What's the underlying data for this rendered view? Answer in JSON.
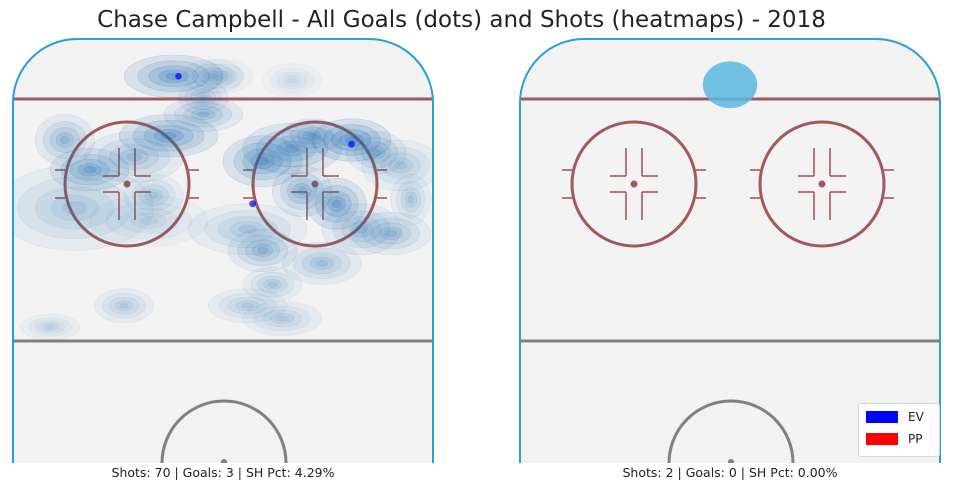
{
  "title": "Chase Campbell - All Goals (dots) and Shots (heatmaps) - 2018",
  "colors": {
    "rink_bg": "#f2f2f2",
    "boards": "#2a9fd6",
    "red_line": "#a05a5a",
    "grey_line": "#808080",
    "ev": "#0000ff",
    "pp": "#ff0000",
    "shot_heat": "#1f6fb8",
    "pp_shot_heat": "#5ab8e0"
  },
  "legend": {
    "placement": "lower-right",
    "items": [
      {
        "label": "EV",
        "color": "#0000ff"
      },
      {
        "label": "PP",
        "color": "#ff0000"
      }
    ]
  },
  "chart_data": [
    {
      "type": "heatmap",
      "panel": "left",
      "caption": "Shots: 70 | Goals: 3 | SH Pct: 4.29%",
      "stats": {
        "shots": 70,
        "goals": 3,
        "sh_pct": "4.29%"
      },
      "xlim": [
        -42.5,
        42.5
      ],
      "ylim": [
        0,
        100
      ],
      "goals": [
        {
          "x": -9,
          "y": 91,
          "strength": "EV"
        },
        {
          "x": 26,
          "y": 75,
          "strength": "EV"
        },
        {
          "x": 6,
          "y": 61,
          "strength": "EV"
        }
      ],
      "shot_density": [
        {
          "x": -10,
          "y": 91,
          "sx": 5,
          "sy": 2.5,
          "w": 1.0
        },
        {
          "x": -2,
          "y": 91,
          "sx": 3,
          "sy": 2,
          "w": 0.5
        },
        {
          "x": -4,
          "y": 86,
          "sx": 2.5,
          "sy": 2,
          "w": 0.55
        },
        {
          "x": -32,
          "y": 76,
          "sx": 3,
          "sy": 3,
          "w": 0.7
        },
        {
          "x": -27,
          "y": 69,
          "sx": 4,
          "sy": 2.5,
          "w": 0.9
        },
        {
          "x": -11,
          "y": 77,
          "sx": 5,
          "sy": 2.5,
          "w": 1.0
        },
        {
          "x": -4,
          "y": 82,
          "sx": 4,
          "sy": 2,
          "w": 0.7
        },
        {
          "x": -18,
          "y": 72,
          "sx": 5,
          "sy": 3,
          "w": 0.6
        },
        {
          "x": -30,
          "y": 60,
          "sx": 8,
          "sy": 5,
          "w": 0.5
        },
        {
          "x": -14,
          "y": 63,
          "sx": 3,
          "sy": 2.5,
          "w": 0.5
        },
        {
          "x": 8,
          "y": 71,
          "sx": 4,
          "sy": 3,
          "w": 1.0
        },
        {
          "x": 14,
          "y": 74,
          "sx": 5,
          "sy": 3,
          "w": 0.9
        },
        {
          "x": 16,
          "y": 64,
          "sx": 3,
          "sy": 3,
          "w": 0.8
        },
        {
          "x": 23,
          "y": 61,
          "sx": 3,
          "sy": 3,
          "w": 1.0
        },
        {
          "x": 18,
          "y": 77,
          "sx": 3,
          "sy": 2,
          "w": 0.8
        },
        {
          "x": 26,
          "y": 76,
          "sx": 4,
          "sy": 2.5,
          "w": 1.2
        },
        {
          "x": 31,
          "y": 73,
          "sx": 3,
          "sy": 2.5,
          "w": 0.7
        },
        {
          "x": 36,
          "y": 70,
          "sx": 4,
          "sy": 3,
          "w": 0.5
        },
        {
          "x": 28,
          "y": 55,
          "sx": 4,
          "sy": 3,
          "w": 0.6
        },
        {
          "x": 34,
          "y": 54,
          "sx": 4,
          "sy": 2.5,
          "w": 0.6
        },
        {
          "x": 38,
          "y": 62,
          "sx": 2,
          "sy": 3,
          "w": 0.5
        },
        {
          "x": 8,
          "y": 50,
          "sx": 3.5,
          "sy": 2.5,
          "w": 0.7
        },
        {
          "x": 5,
          "y": 55,
          "sx": 6,
          "sy": 3,
          "w": 0.5
        },
        {
          "x": 20,
          "y": 47,
          "sx": 4,
          "sy": 2.5,
          "w": 0.55
        },
        {
          "x": 10,
          "y": 42,
          "sx": 3,
          "sy": 2,
          "w": 0.5
        },
        {
          "x": -15,
          "y": 57,
          "sx": 6,
          "sy": 3,
          "w": 0.35
        },
        {
          "x": -20,
          "y": 37,
          "sx": 3,
          "sy": 2,
          "w": 0.45
        },
        {
          "x": 5,
          "y": 37,
          "sx": 4,
          "sy": 2,
          "w": 0.45
        },
        {
          "x": 12,
          "y": 34,
          "sx": 4,
          "sy": 2,
          "w": 0.45
        },
        {
          "x": -35,
          "y": 32,
          "sx": 3,
          "sy": 1.5,
          "w": 0.35
        },
        {
          "x": 0,
          "y": 91,
          "sx": 3,
          "sy": 2,
          "w": 0.3
        },
        {
          "x": 14,
          "y": 90,
          "sx": 3,
          "sy": 2,
          "w": 0.25
        }
      ]
    },
    {
      "type": "heatmap",
      "panel": "right",
      "caption": "Shots: 2 | Goals: 0 | SH Pct: 0.00%",
      "stats": {
        "shots": 2,
        "goals": 0,
        "sh_pct": "0.00%"
      },
      "xlim": [
        -42.5,
        42.5
      ],
      "ylim": [
        0,
        100
      ],
      "goals": [],
      "shot_density": [
        {
          "x": 0,
          "y": 89,
          "sx": 5.5,
          "sy": 5.5,
          "w": 1.0
        }
      ]
    }
  ]
}
